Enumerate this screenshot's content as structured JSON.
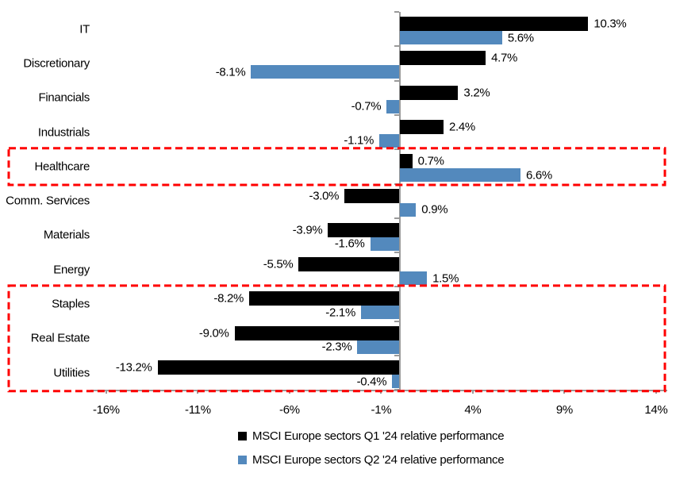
{
  "chart_data": {
    "type": "bar",
    "orientation": "horizontal",
    "title": "",
    "categories": [
      "IT",
      "Discretionary",
      "Financials",
      "Industrials",
      "Healthcare",
      "Comm. Services",
      "Materials",
      "Energy",
      "Staples",
      "Real Estate",
      "Utilities"
    ],
    "series": [
      {
        "name": "MSCI Europe sectors Q1 '24 relative performance",
        "color": "#000000",
        "values": [
          10.3,
          4.7,
          3.2,
          2.4,
          0.7,
          -3.0,
          -3.9,
          -5.5,
          -8.2,
          -9.0,
          -13.2
        ],
        "labels": [
          "10.3%",
          "4.7%",
          "3.2%",
          "2.4%",
          "0.7%",
          "-3.0%",
          "-3.9%",
          "-5.5%",
          "-8.2%",
          "-9.0%",
          "-13.2%"
        ]
      },
      {
        "name": "MSCI Europe sectors Q2 '24 relative performance",
        "color": "#5389BD",
        "values": [
          5.6,
          -8.1,
          -0.7,
          -1.1,
          6.6,
          0.9,
          -1.6,
          1.5,
          -2.1,
          -2.3,
          -0.4
        ],
        "labels": [
          "5.6%",
          "-8.1%",
          "-0.7%",
          "-1.1%",
          "6.6%",
          "0.9%",
          "-1.6%",
          "1.5%",
          "-2.1%",
          "-2.3%",
          "-0.4%"
        ]
      }
    ],
    "x_ticks": [
      -16,
      -11,
      -6,
      -1,
      4,
      9,
      14
    ],
    "x_tick_labels": [
      "-16%",
      "-11%",
      "-6%",
      "-1%",
      "4%",
      "9%",
      "14%"
    ],
    "xlim": [
      -16.9,
      14.6
    ],
    "grid": false,
    "legend_position": "bottom",
    "highlights": [
      {
        "name": "healthcare-highlight-box",
        "start_category": "Healthcare",
        "end_category": "Healthcare"
      },
      {
        "name": "defensives-highlight-box",
        "start_category": "Staples",
        "end_category": "Utilities"
      }
    ]
  },
  "colors": {
    "q1_bar": "#000000",
    "q2_bar": "#5389BD",
    "axis": "#9A9A9A",
    "highlight": "#FF0000",
    "text": "#000000",
    "background": "#FFFFFF"
  }
}
